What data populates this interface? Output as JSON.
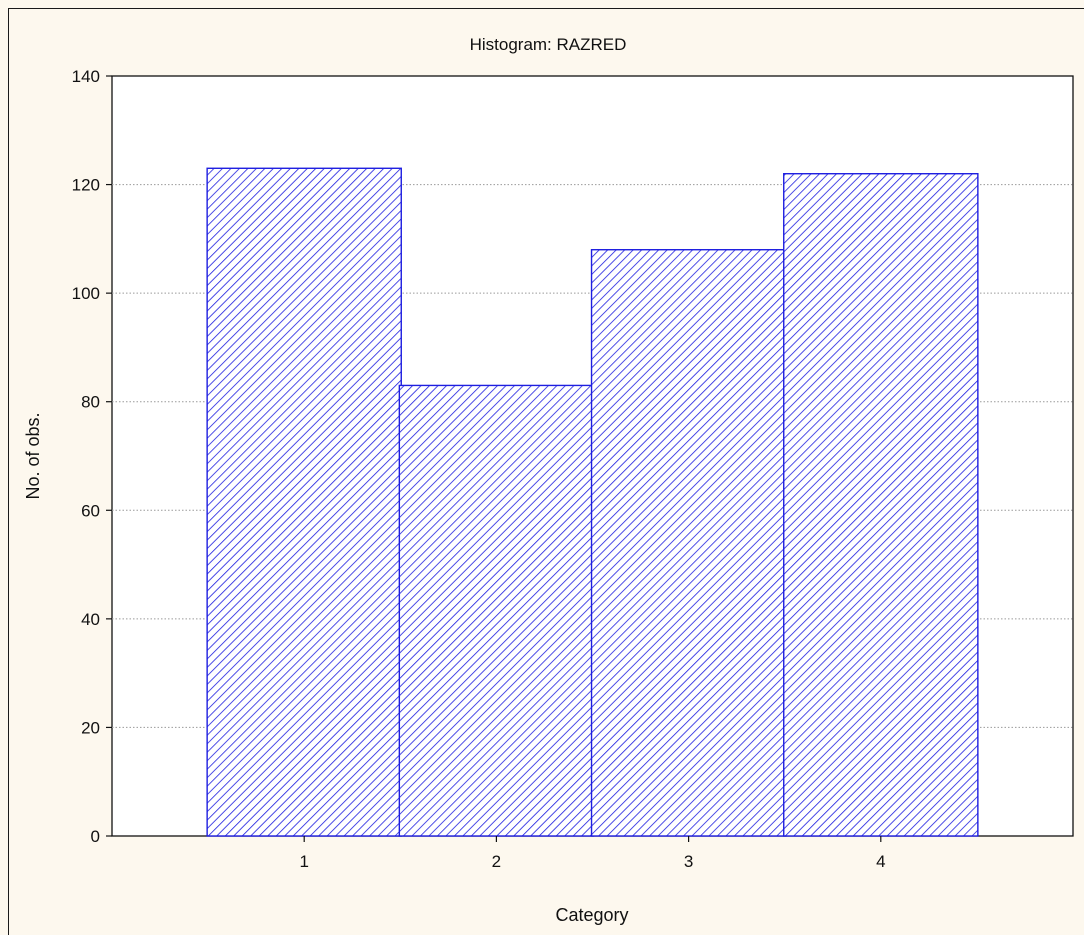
{
  "chart_data": {
    "type": "bar",
    "title": "Histogram: RAZRED",
    "xlabel": "Category",
    "ylabel": "No. of obs.",
    "categories": [
      "1",
      "2",
      "3",
      "4"
    ],
    "values": [
      123,
      83,
      108,
      122
    ],
    "ylim": [
      0,
      140
    ],
    "yticks": [
      "0",
      "20",
      "40",
      "60",
      "80",
      "100",
      "120",
      "140"
    ],
    "grid": "horizontal-dotted",
    "legend": "none",
    "bar_fill": "#ffffff",
    "bar_stroke": "#1e1ee0",
    "hatch_color": "#1e1ee0",
    "gridline_color": "#9a9a9a",
    "background": "#fdf8ee",
    "plot_background": "#ffffff"
  }
}
